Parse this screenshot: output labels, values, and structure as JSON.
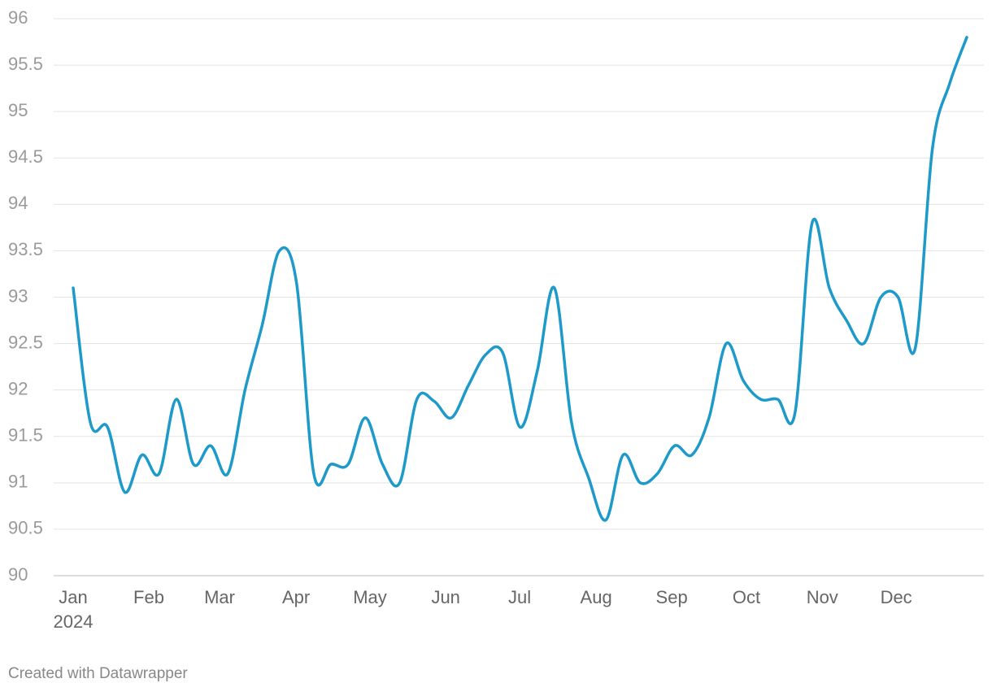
{
  "chart_data": {
    "type": "line",
    "categories": [
      null,
      null,
      null,
      null,
      null,
      null,
      null,
      null,
      null,
      null,
      null,
      null,
      null,
      null,
      null,
      null,
      null,
      null,
      null,
      null,
      null,
      null,
      null,
      null,
      null,
      null,
      null,
      null,
      null,
      null,
      null,
      null,
      null,
      null,
      null,
      null,
      null,
      null,
      null,
      null,
      null,
      null,
      null,
      null,
      null,
      null,
      null,
      null,
      null,
      null,
      null,
      null,
      null
    ],
    "series": [
      {
        "name": null,
        "color": "#1d9ac9",
        "values": [
          93.1,
          91.65,
          91.6,
          90.9,
          91.3,
          91.1,
          91.9,
          91.2,
          91.4,
          91.1,
          92.0,
          92.7,
          93.5,
          93.15,
          91.1,
          91.2,
          91.2,
          91.7,
          91.2,
          91.0,
          91.9,
          91.88,
          91.7,
          92.05,
          92.38,
          92.4,
          91.6,
          92.2,
          93.1,
          91.65,
          91.05,
          90.6,
          91.3,
          91.0,
          91.1,
          91.4,
          91.3,
          91.7,
          92.5,
          92.1,
          91.9,
          91.9,
          91.75,
          93.8,
          93.1,
          92.75,
          92.5,
          93.0,
          93.0,
          92.45,
          94.6,
          95.3,
          95.8
        ]
      }
    ],
    "xticks": [
      {
        "value": 0,
        "label": "Jan\n2024"
      },
      {
        "value": 4.4,
        "label": "Feb"
      },
      {
        "value": 8.52,
        "label": "Mar"
      },
      {
        "value": 12.97,
        "label": "Apr"
      },
      {
        "value": 17.27,
        "label": "May"
      },
      {
        "value": 21.68,
        "label": "Jun"
      },
      {
        "value": 25.98,
        "label": "Jul"
      },
      {
        "value": 30.43,
        "label": "Aug"
      },
      {
        "value": 34.83,
        "label": "Sep"
      },
      {
        "value": 39.18,
        "label": "Oct"
      },
      {
        "value": 43.59,
        "label": "Nov"
      },
      {
        "value": 47.89,
        "label": "Dec"
      }
    ],
    "ylim": [
      90,
      96
    ],
    "yticks": [
      90,
      90.5,
      91,
      91.5,
      92,
      92.5,
      93,
      93.5,
      94,
      94.5,
      95,
      95.5,
      96
    ],
    "grid": true,
    "footer": "Created with Datawrapper"
  }
}
